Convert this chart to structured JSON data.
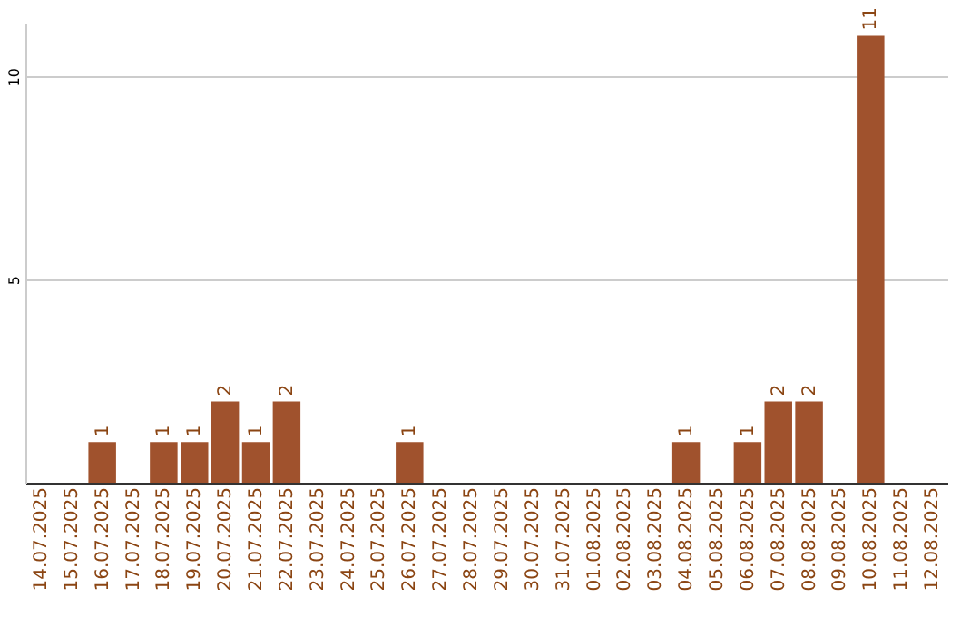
{
  "chart_data": {
    "type": "bar",
    "categories": [
      "14.07.2025",
      "15.07.2025",
      "16.07.2025",
      "17.07.2025",
      "18.07.2025",
      "19.07.2025",
      "20.07.2025",
      "21.07.2025",
      "22.07.2025",
      "23.07.2025",
      "24.07.2025",
      "25.07.2025",
      "26.07.2025",
      "27.07.2025",
      "28.07.2025",
      "29.07.2025",
      "30.07.2025",
      "31.07.2025",
      "01.08.2025",
      "02.08.2025",
      "03.08.2025",
      "04.08.2025",
      "05.08.2025",
      "06.08.2025",
      "07.08.2025",
      "08.08.2025",
      "09.08.2025",
      "10.08.2025",
      "11.08.2025",
      "12.08.2025"
    ],
    "values": [
      null,
      null,
      1,
      null,
      1,
      1,
      2,
      1,
      2,
      null,
      null,
      null,
      1,
      null,
      null,
      null,
      null,
      null,
      null,
      null,
      null,
      1,
      null,
      1,
      2,
      2,
      null,
      11,
      null,
      null
    ],
    "color": "#a0522d",
    "ylim": [
      0,
      11.3
    ],
    "yticks": [
      5,
      10
    ],
    "grid": "y",
    "data_labels": true
  }
}
